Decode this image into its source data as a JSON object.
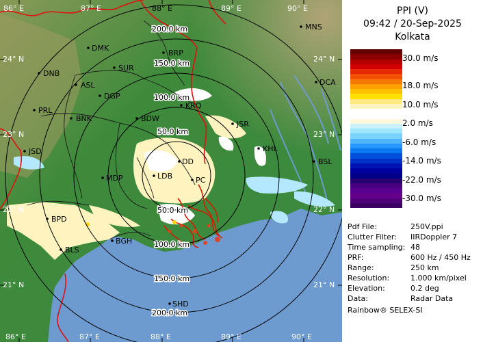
{
  "header": {
    "product": "PPI (V)",
    "datetime": "09:42 / 20-Sep-2025",
    "station": "Kolkata"
  },
  "legend": [
    {
      "label": "30.0 m/s"
    },
    {
      "label": "18.0 m/s"
    },
    {
      "label": "10.0 m/s"
    },
    {
      "label": "2.0 m/s"
    },
    {
      "label": "-6.0 m/s"
    },
    {
      "label": "-14.0 m/s"
    },
    {
      "label": "-22.0 m/s"
    },
    {
      "label": "-30.0 m/s"
    }
  ],
  "legend_colors": [
    "#640000",
    "#8c0000",
    "#b40000",
    "#d20000",
    "#e62a00",
    "#f05000",
    "#f77800",
    "#ffa000",
    "#ffc000",
    "#ffe000",
    "#ffea80",
    "#fff4c0",
    "#ffffff",
    "#ffffff",
    "#fff8dc",
    "#c8f0ff",
    "#a0e6ff",
    "#78d2ff",
    "#50b4ff",
    "#2896ff",
    "#0a78f0",
    "#0050dc",
    "#0032c8",
    "#0014b4",
    "#0000a0",
    "#000088",
    "#280070",
    "#460080",
    "#5a0090",
    "#64008c",
    "#500078",
    "#3c0064"
  ],
  "info": [
    {
      "key": "Pdf File:",
      "value": "250V.ppi"
    },
    {
      "key": "Clutter Filter:",
      "value": "IIRDoppler 7"
    },
    {
      "key": "Time sampling:",
      "value": "48"
    },
    {
      "key": "PRF:",
      "value": "600 Hz / 450 Hz"
    },
    {
      "key": "Range:",
      "value": "250 km"
    },
    {
      "key": "Resolution:",
      "value": "1.000 km/pixel"
    },
    {
      "key": "Elevation:",
      "value": "0.2 deg"
    },
    {
      "key": "Data:",
      "value": "Radar Data"
    }
  ],
  "credit": "Rainbow® SELEX-SI",
  "map": {
    "lon_labels": [
      "86° E",
      "87° E",
      "88° E",
      "89° E",
      "90° E"
    ],
    "lat_labels": [
      "24° N",
      "23° N",
      "22° N",
      "21° N"
    ],
    "range_labels": [
      "50.0 km",
      "100.0 km",
      "150.0 km",
      "200.0 km"
    ],
    "stations": [
      "MNS",
      "DMK",
      "BRP",
      "DNB",
      "SUR",
      "DCA",
      "ASL",
      "DGP",
      "KRQ",
      "PRL",
      "BNK",
      "BDW",
      "JSR",
      "KHL",
      "JSD",
      "DD",
      "BSL",
      "MDP",
      "LDB",
      "PC",
      "BPD",
      "BGH",
      "BLS",
      "SHD"
    ]
  },
  "colors": {
    "sea": "#6e9bcf",
    "land_low": "#3f8a3a",
    "land_high": "#a9a064"
  }
}
